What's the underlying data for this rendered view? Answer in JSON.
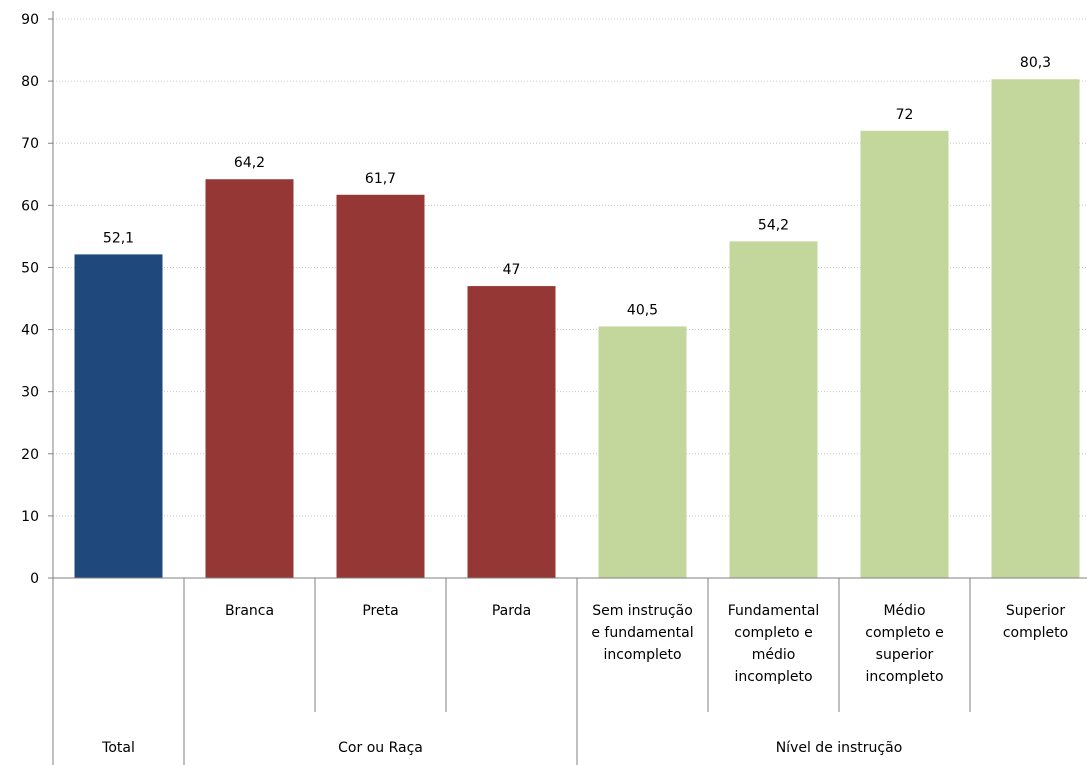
{
  "chart_data": {
    "type": "bar",
    "ylim": [
      0,
      90
    ],
    "yticks": [
      "0",
      "10",
      "20",
      "30",
      "40",
      "50",
      "60",
      "70",
      "80",
      "90"
    ],
    "grid": true,
    "bars": [
      {
        "group": "Total",
        "category": [],
        "value": 52.1,
        "label": "52,1",
        "color": "#1f497d"
      },
      {
        "group": "Cor ou Raça",
        "category": [
          "Branca"
        ],
        "value": 64.2,
        "label": "64,2",
        "color": "#953735"
      },
      {
        "group": "Cor ou Raça",
        "category": [
          "Preta"
        ],
        "value": 61.7,
        "label": "61,7",
        "color": "#953735"
      },
      {
        "group": "Cor ou Raça",
        "category": [
          "Parda"
        ],
        "value": 47,
        "label": "47",
        "color": "#953735"
      },
      {
        "group": "Nível de instrução",
        "category": [
          "Sem instrução",
          "e fundamental",
          "incompleto"
        ],
        "value": 40.5,
        "label": "40,5",
        "color": "#c3d69b"
      },
      {
        "group": "Nível de instrução",
        "category": [
          "Fundamental",
          "completo e",
          "médio",
          "incompleto"
        ],
        "value": 54.2,
        "label": "54,2",
        "color": "#c3d69b"
      },
      {
        "group": "Nível de instrução",
        "category": [
          "Médio",
          "completo e",
          "superior",
          "incompleto"
        ],
        "value": 72,
        "label": "72",
        "color": "#c3d69b"
      },
      {
        "group": "Nível de instrução",
        "category": [
          "Superior",
          "completo"
        ],
        "value": 80.3,
        "label": "80,3",
        "color": "#c3d69b"
      }
    ],
    "groups": [
      "Total",
      "Cor ou Raça",
      "Nível de instrução"
    ]
  }
}
